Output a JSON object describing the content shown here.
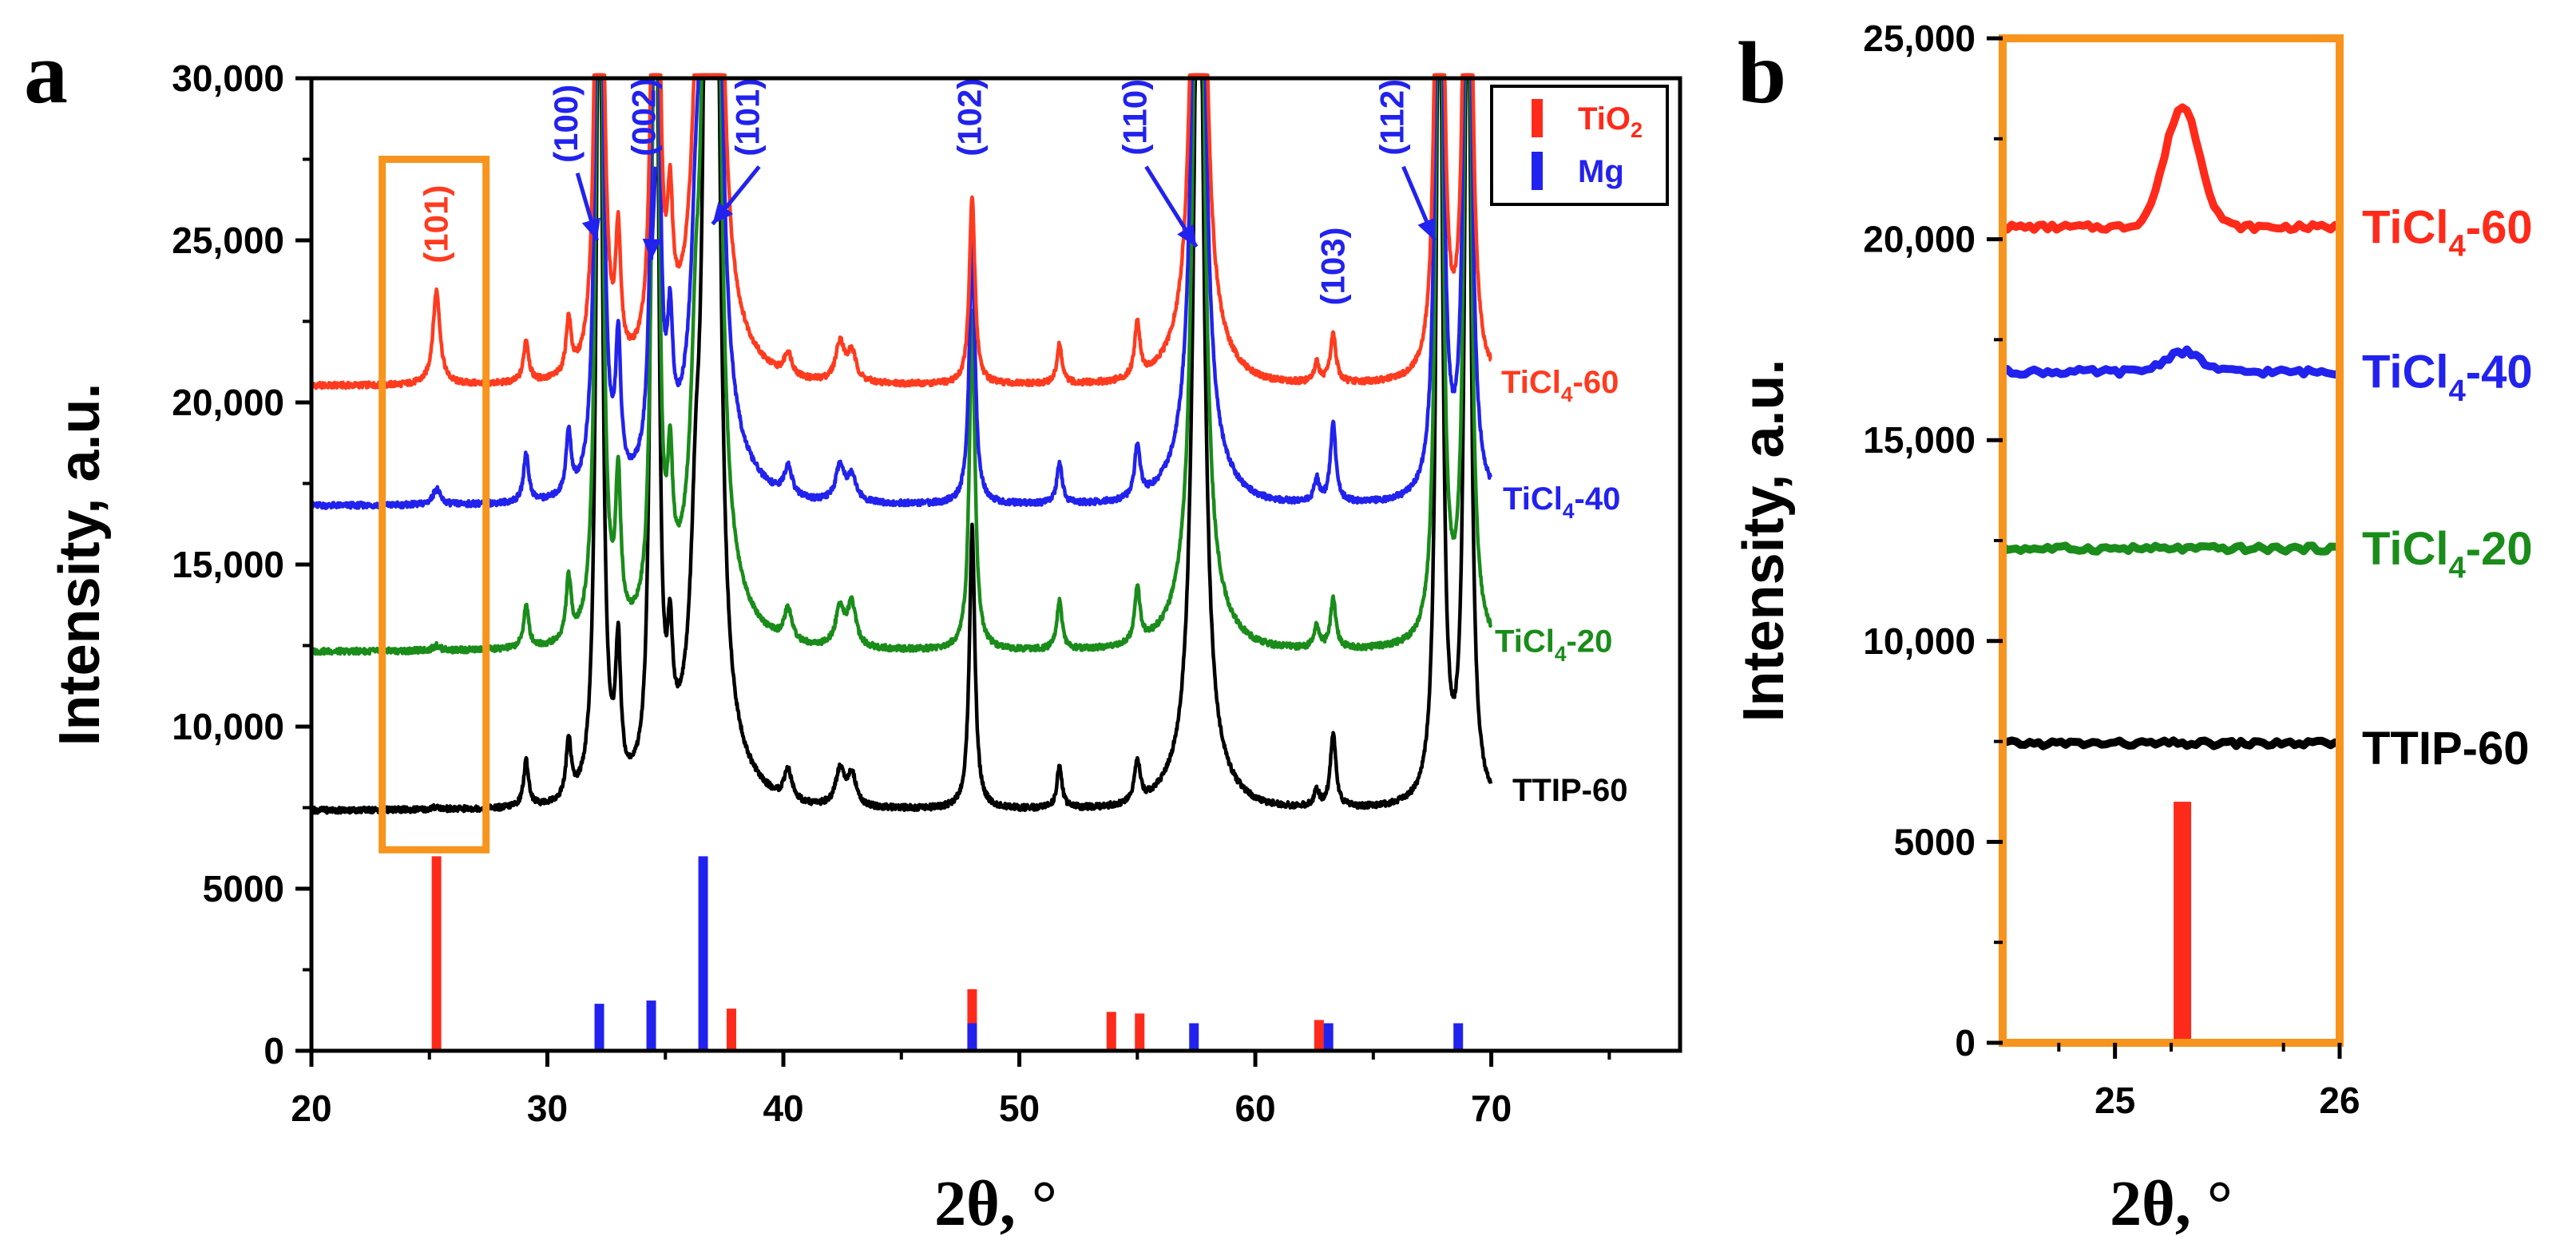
{
  "chart_data": [
    {
      "panel_label": "a",
      "type": "line",
      "xlabel": "2θ, °",
      "ylabel": "Intensity, a.u.",
      "xlim": [
        20,
        78
      ],
      "ylim": [
        0,
        30000
      ],
      "xticks": [
        20,
        30,
        40,
        50,
        60,
        70
      ],
      "yticks": [
        0,
        5000,
        10000,
        15000,
        20000,
        25000,
        30000
      ],
      "ytick_labels": [
        "0",
        "5000",
        "10,000",
        "15,000",
        "20,000",
        "25,000",
        "30,000"
      ],
      "series": [
        {
          "name": "TiCl4-60",
          "label_main": "TiCl",
          "label_sub": "4",
          "label_suffix": "-60",
          "color": "#ff3b1f",
          "baseline": 20500
        },
        {
          "name": "TiCl4-40",
          "label_main": "TiCl",
          "label_sub": "4",
          "label_suffix": "-40",
          "color": "#2222ee",
          "baseline": 16800
        },
        {
          "name": "TiCl4-20",
          "label_main": "TiCl",
          "label_sub": "4",
          "label_suffix": "-20",
          "color": "#1a8c1a",
          "baseline": 12300
        },
        {
          "name": "TTIP-60",
          "label_main": "TTIP-60",
          "label_sub": "",
          "label_suffix": "",
          "color": "#000000",
          "baseline": 7400
        }
      ],
      "peaks": [
        {
          "x": 25.3,
          "h": [
            2900,
            500,
            150,
            80
          ],
          "w": 0.18
        },
        {
          "x": 29.1,
          "h": [
            1300,
            1500,
            1300,
            1400
          ],
          "w": 0.13
        },
        {
          "x": 30.9,
          "h": [
            1700,
            1900,
            1900,
            1800
          ],
          "w": 0.13
        },
        {
          "x": 32.2,
          "h": [
            30000,
            30000,
            30000,
            30000
          ],
          "w": 0.15
        },
        {
          "x": 33.0,
          "h": [
            3800,
            4200,
            4500,
            4200
          ],
          "w": 0.13
        },
        {
          "x": 34.4,
          "h": [
            2000,
            2200,
            3200,
            9000
          ],
          "w": 0.13
        },
        {
          "x": 34.6,
          "h": [
            30000,
            30000,
            30000,
            30000
          ],
          "w": 0.12
        },
        {
          "x": 35.2,
          "h": [
            3500,
            3400,
            3600,
            3000
          ],
          "w": 0.13
        },
        {
          "x": 36.3,
          "h": [
            4000,
            4500,
            5500,
            5200
          ],
          "w": 0.25
        },
        {
          "x": 36.8,
          "h": [
            30000,
            30000,
            30000,
            30000
          ],
          "w": 0.18
        },
        {
          "x": 37.1,
          "h": [
            30000,
            30000,
            30000,
            30000
          ],
          "w": 0.22
        },
        {
          "x": 40.2,
          "h": [
            700,
            900,
            1000,
            900
          ],
          "w": 0.2
        },
        {
          "x": 42.4,
          "h": [
            1200,
            1100,
            1200,
            1100
          ],
          "w": 0.22
        },
        {
          "x": 42.9,
          "h": [
            900,
            800,
            1300,
            1000
          ],
          "w": 0.22
        },
        {
          "x": 48.0,
          "h": [
            5800,
            8400,
            10400,
            8700
          ],
          "w": 0.14
        },
        {
          "x": 51.7,
          "h": [
            1200,
            1300,
            1500,
            1300
          ],
          "w": 0.13
        },
        {
          "x": 55.0,
          "h": [
            1700,
            1600,
            1700,
            1300
          ],
          "w": 0.14
        },
        {
          "x": 57.6,
          "h": [
            30000,
            30000,
            30000,
            30000
          ],
          "w": 0.25
        },
        {
          "x": 62.6,
          "h": [
            600,
            700,
            700,
            500
          ],
          "w": 0.13
        },
        {
          "x": 63.3,
          "h": [
            1500,
            2400,
            1500,
            2300
          ],
          "w": 0.14
        },
        {
          "x": 67.8,
          "h": [
            30000,
            30000,
            30000,
            30000
          ],
          "w": 0.15
        },
        {
          "x": 69.0,
          "h": [
            30000,
            30000,
            30000,
            30000
          ],
          "w": 0.15
        }
      ],
      "reference_lines": [
        {
          "phase": "TiO2",
          "color": "#ff2a1a",
          "sticks": [
            [
              25.3,
              6000
            ],
            [
              37.8,
              1300
            ],
            [
              48.0,
              1900
            ],
            [
              53.9,
              1200
            ],
            [
              55.1,
              1150
            ],
            [
              62.7,
              950
            ]
          ]
        },
        {
          "phase": "Mg",
          "color": "#2222ee",
          "sticks": [
            [
              32.2,
              1450
            ],
            [
              34.4,
              1550
            ],
            [
              36.6,
              6000
            ],
            [
              48.0,
              850
            ],
            [
              57.4,
              850
            ],
            [
              63.1,
              850
            ],
            [
              68.6,
              850
            ]
          ]
        }
      ],
      "legend": {
        "position": "top-right",
        "entries": [
          {
            "label_main": "TiO",
            "label_sub": "2",
            "color": "#ff2a1a"
          },
          {
            "label_main": "Mg",
            "label_sub": "",
            "color": "#2222ee"
          }
        ]
      },
      "annotations": [
        {
          "text": "(101)",
          "x": 25.3,
          "y": 25500,
          "color": "#ff3b1f",
          "arrow_to": null
        },
        {
          "text": "(100)",
          "x": 30.8,
          "y": 28600,
          "color": "#2222ee",
          "arrow_to": [
            32.1,
            25000
          ]
        },
        {
          "text": "(002)",
          "x": 34.1,
          "y": 28800,
          "color": "#2222ee",
          "arrow_to": [
            34.4,
            24400
          ]
        },
        {
          "text": "(101)",
          "x": 38.5,
          "y": 28800,
          "color": "#2222ee",
          "arrow_to": [
            37.0,
            25500
          ]
        },
        {
          "text": "(102)",
          "x": 47.9,
          "y": 28800,
          "color": "#2222ee",
          "arrow_to": null
        },
        {
          "text": "(110)",
          "x": 54.9,
          "y": 28800,
          "color": "#2222ee",
          "arrow_to": [
            57.5,
            24800
          ]
        },
        {
          "text": "(103)",
          "x": 63.3,
          "y": 24200,
          "color": "#2222ee",
          "arrow_to": null
        },
        {
          "text": "(112)",
          "x": 65.8,
          "y": 28800,
          "color": "#2222ee",
          "arrow_to": [
            67.6,
            25000
          ]
        }
      ],
      "highlight_box": {
        "x_range": [
          23.0,
          27.4
        ],
        "y_range": [
          6200,
          27500
        ],
        "color": "#f7941d"
      }
    },
    {
      "panel_label": "b",
      "type": "line",
      "xlabel": "2θ, °",
      "ylabel": "Intensity, a.u.",
      "xlim": [
        24.5,
        26.0
      ],
      "ylim": [
        0,
        25000
      ],
      "xticks": [
        25,
        26
      ],
      "yticks": [
        0,
        5000,
        10000,
        15000,
        20000,
        25000
      ],
      "ytick_labels": [
        "0",
        "5000",
        "10,000",
        "15,000",
        "20,000",
        "25,000"
      ],
      "frame_color": "#f7941d",
      "series": [
        {
          "name": "TiCl4-60",
          "label_main": "TiCl",
          "label_sub": "4",
          "label_suffix": "-60",
          "color": "#ff2a1a",
          "baseline": 20300,
          "peak_height": 3000
        },
        {
          "name": "TiCl4-40",
          "label_main": "TiCl",
          "label_sub": "4",
          "label_suffix": "-40",
          "color": "#2222ee",
          "baseline": 16700,
          "peak_height": 500
        },
        {
          "name": "TiCl4-20",
          "label_main": "TiCl",
          "label_sub": "4",
          "label_suffix": "-20",
          "color": "#1a8c1a",
          "baseline": 12300,
          "peak_height": 0
        },
        {
          "name": "TTIP-60",
          "label_main": "TTIP-60",
          "label_sub": "",
          "label_suffix": "",
          "color": "#000000",
          "baseline": 7450,
          "peak_height": 0
        }
      ],
      "peak_position": 25.3,
      "reference_lines": [
        {
          "phase": "TiO2",
          "color": "#ff2a1a",
          "sticks": [
            [
              25.3,
              6000
            ]
          ]
        }
      ]
    }
  ]
}
